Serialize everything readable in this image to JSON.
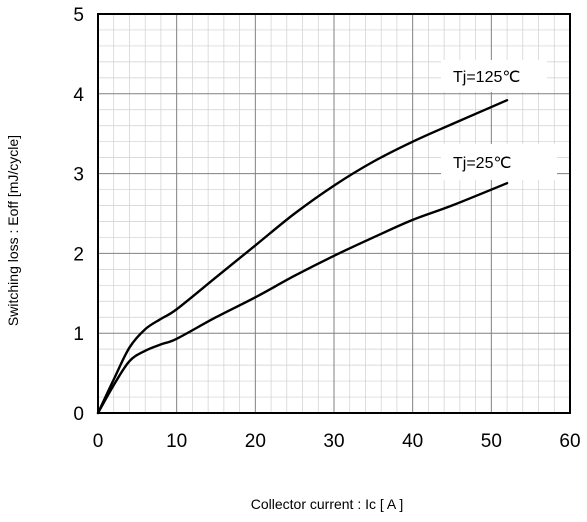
{
  "chart_data": {
    "type": "line",
    "title": "",
    "xlabel": "Collector current  :  Ic [ A ]",
    "ylabel": "Switching loss  :  Eoff [mJ/cycle]",
    "xlim": [
      0,
      60
    ],
    "ylim": [
      0,
      5
    ],
    "x_ticks": [
      "0",
      "10",
      "20",
      "30",
      "40",
      "50",
      "60"
    ],
    "y_ticks": [
      "0",
      "1",
      "2",
      "3",
      "4",
      "5"
    ],
    "grid": true,
    "series": [
      {
        "name": "Tj=125°C",
        "label_text": "Tj=125℃",
        "x": [
          0,
          2,
          4,
          6,
          8,
          10,
          15,
          20,
          25,
          30,
          35,
          40,
          45,
          52
        ],
        "y": [
          0,
          0.42,
          0.82,
          1.05,
          1.18,
          1.3,
          1.7,
          2.1,
          2.5,
          2.85,
          3.15,
          3.4,
          3.62,
          3.92
        ]
      },
      {
        "name": "Tj=25°C",
        "label_text": "Tj=25℃",
        "x": [
          0,
          2,
          4,
          6,
          8,
          10,
          15,
          20,
          25,
          30,
          35,
          40,
          45,
          52
        ],
        "y": [
          0,
          0.35,
          0.65,
          0.78,
          0.86,
          0.93,
          1.2,
          1.45,
          1.72,
          1.97,
          2.2,
          2.42,
          2.6,
          2.88
        ]
      }
    ]
  }
}
